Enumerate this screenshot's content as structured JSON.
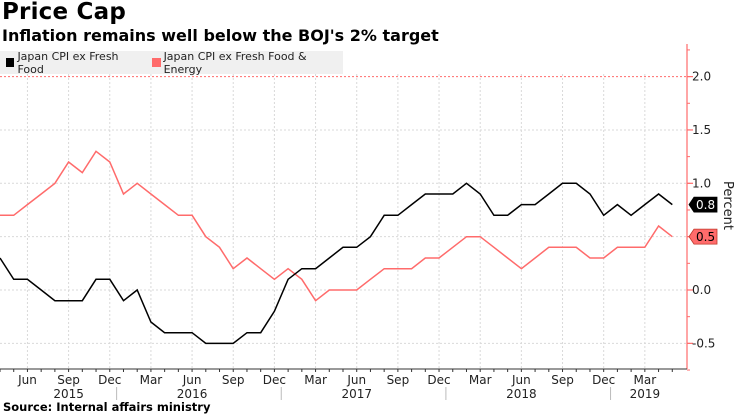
{
  "header": {
    "title": "Price Cap",
    "subtitle": "Inflation remains well below the BOJ's 2% target"
  },
  "source": "Source: Internal affairs ministry",
  "legend": [
    {
      "label": "Japan CPI ex Fresh Food",
      "color": "#000000"
    },
    {
      "label": "Japan CPI ex Fresh Food & Energy",
      "color": "#ff6b6b"
    }
  ],
  "chart_data": {
    "type": "line",
    "title": "Price Cap",
    "subtitle": "Inflation remains well below the BOJ's 2% target",
    "xlabel": "",
    "ylabel": "Percent",
    "y_axis_side": "right",
    "ylim": [
      -0.8,
      2.3
    ],
    "yticks": [
      -0.5,
      0.0,
      0.5,
      1.0,
      1.5,
      2.0
    ],
    "ytick_labels": [
      "-0.5",
      "0.0",
      "0.5",
      "1.0",
      "1.5",
      "2.0"
    ],
    "reference_line": {
      "value": 2.0,
      "style": "dotted",
      "color": "#ff6b6b"
    },
    "grid": true,
    "legend_position": "top-left",
    "x_start": "2015-04",
    "x": [
      "2015-04",
      "2015-05",
      "2015-06",
      "2015-07",
      "2015-08",
      "2015-09",
      "2015-10",
      "2015-11",
      "2015-12",
      "2016-01",
      "2016-02",
      "2016-03",
      "2016-04",
      "2016-05",
      "2016-06",
      "2016-07",
      "2016-08",
      "2016-09",
      "2016-10",
      "2016-11",
      "2016-12",
      "2017-01",
      "2017-02",
      "2017-03",
      "2017-04",
      "2017-05",
      "2017-06",
      "2017-07",
      "2017-08",
      "2017-09",
      "2017-10",
      "2017-11",
      "2017-12",
      "2018-01",
      "2018-02",
      "2018-03",
      "2018-04",
      "2018-05",
      "2018-06",
      "2018-07",
      "2018-08",
      "2018-09",
      "2018-10",
      "2018-11",
      "2018-12",
      "2019-01",
      "2019-02",
      "2019-03",
      "2019-04",
      "2019-05"
    ],
    "month_labels": [
      {
        "month_index": 2,
        "label": "Jun"
      },
      {
        "month_index": 5,
        "label": "Sep"
      },
      {
        "month_index": 8,
        "label": "Dec"
      },
      {
        "month_index": 11,
        "label": "Mar"
      },
      {
        "month_index": 14,
        "label": "Jun"
      },
      {
        "month_index": 17,
        "label": "Sep"
      },
      {
        "month_index": 20,
        "label": "Dec"
      },
      {
        "month_index": 23,
        "label": "Mar"
      },
      {
        "month_index": 26,
        "label": "Jun"
      },
      {
        "month_index": 29,
        "label": "Sep"
      },
      {
        "month_index": 32,
        "label": "Dec"
      },
      {
        "month_index": 35,
        "label": "Mar"
      },
      {
        "month_index": 38,
        "label": "Jun"
      },
      {
        "month_index": 41,
        "label": "Sep"
      },
      {
        "month_index": 44,
        "label": "Dec"
      },
      {
        "month_index": 47,
        "label": "Mar"
      }
    ],
    "year_labels": [
      {
        "month_index": 5,
        "label": "2015"
      },
      {
        "month_index": 14,
        "label": "2016"
      },
      {
        "month_index": 26,
        "label": "2017"
      },
      {
        "month_index": 38,
        "label": "2018"
      },
      {
        "month_index": 47,
        "label": "2019"
      }
    ],
    "year_dividers": [
      8.5,
      20.5,
      32.5,
      44.5
    ],
    "series": [
      {
        "name": "Japan CPI ex Fresh Food",
        "color": "#000000",
        "last_value_label": "0.8",
        "values": [
          0.3,
          0.1,
          0.1,
          0.0,
          -0.1,
          -0.1,
          -0.1,
          0.1,
          0.1,
          -0.1,
          0.0,
          -0.3,
          -0.4,
          -0.4,
          -0.4,
          -0.5,
          -0.5,
          -0.5,
          -0.4,
          -0.4,
          -0.2,
          0.1,
          0.2,
          0.2,
          0.3,
          0.4,
          0.4,
          0.5,
          0.7,
          0.7,
          0.8,
          0.9,
          0.9,
          0.9,
          1.0,
          0.9,
          0.7,
          0.7,
          0.8,
          0.8,
          0.9,
          1.0,
          1.0,
          0.9,
          0.7,
          0.8,
          0.7,
          0.8,
          0.9,
          0.8
        ]
      },
      {
        "name": "Japan CPI ex Fresh Food & Energy",
        "color": "#ff6b6b",
        "last_value_label": "0.5",
        "values": [
          0.7,
          0.7,
          0.8,
          0.9,
          1.0,
          1.2,
          1.1,
          1.3,
          1.2,
          0.9,
          1.0,
          0.9,
          0.8,
          0.7,
          0.7,
          0.5,
          0.4,
          0.2,
          0.3,
          0.2,
          0.1,
          0.2,
          0.1,
          -0.1,
          0.0,
          0.0,
          0.0,
          0.1,
          0.2,
          0.2,
          0.2,
          0.3,
          0.3,
          0.4,
          0.5,
          0.5,
          0.4,
          0.3,
          0.2,
          0.3,
          0.4,
          0.4,
          0.4,
          0.3,
          0.3,
          0.4,
          0.4,
          0.4,
          0.6,
          0.5
        ]
      }
    ]
  }
}
